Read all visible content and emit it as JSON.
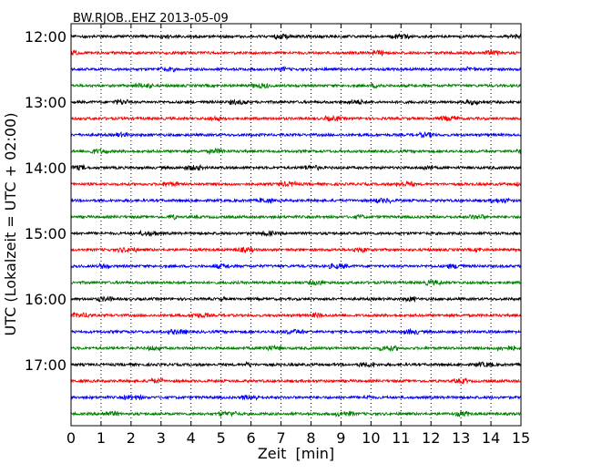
{
  "chart_data": {
    "type": "line",
    "title": "BW.RJOB..EHZ 2013-05-09",
    "xlabel": "Zeit  [min]",
    "ylabel": "UTC (Lokalzeit = UTC + 02:00)",
    "xlim": [
      0,
      15
    ],
    "x_ticks": [
      "0",
      "1",
      "2",
      "3",
      "4",
      "5",
      "6",
      "7",
      "8",
      "9",
      "10",
      "11",
      "12",
      "13",
      "14",
      "15"
    ],
    "y_tick_labels": [
      "12:00",
      "13:00",
      "14:00",
      "15:00",
      "16:00",
      "17:00"
    ],
    "grid": "vertical-dotted",
    "trace_colors": [
      "#000000",
      "#ff0000",
      "#0000ff",
      "#008000"
    ],
    "traces": [
      {
        "start": "12:00"
      },
      {
        "start": "12:15"
      },
      {
        "start": "12:30"
      },
      {
        "start": "12:45"
      },
      {
        "start": "13:00"
      },
      {
        "start": "13:15"
      },
      {
        "start": "13:30"
      },
      {
        "start": "13:45"
      },
      {
        "start": "14:00"
      },
      {
        "start": "14:15"
      },
      {
        "start": "14:30"
      },
      {
        "start": "14:45"
      },
      {
        "start": "15:00"
      },
      {
        "start": "15:15"
      },
      {
        "start": "15:30"
      },
      {
        "start": "15:45"
      },
      {
        "start": "16:00"
      },
      {
        "start": "16:15"
      },
      {
        "start": "16:30"
      },
      {
        "start": "16:45"
      },
      {
        "start": "17:00"
      },
      {
        "start": "17:15"
      },
      {
        "start": "17:30"
      },
      {
        "start": "17:45"
      }
    ]
  }
}
